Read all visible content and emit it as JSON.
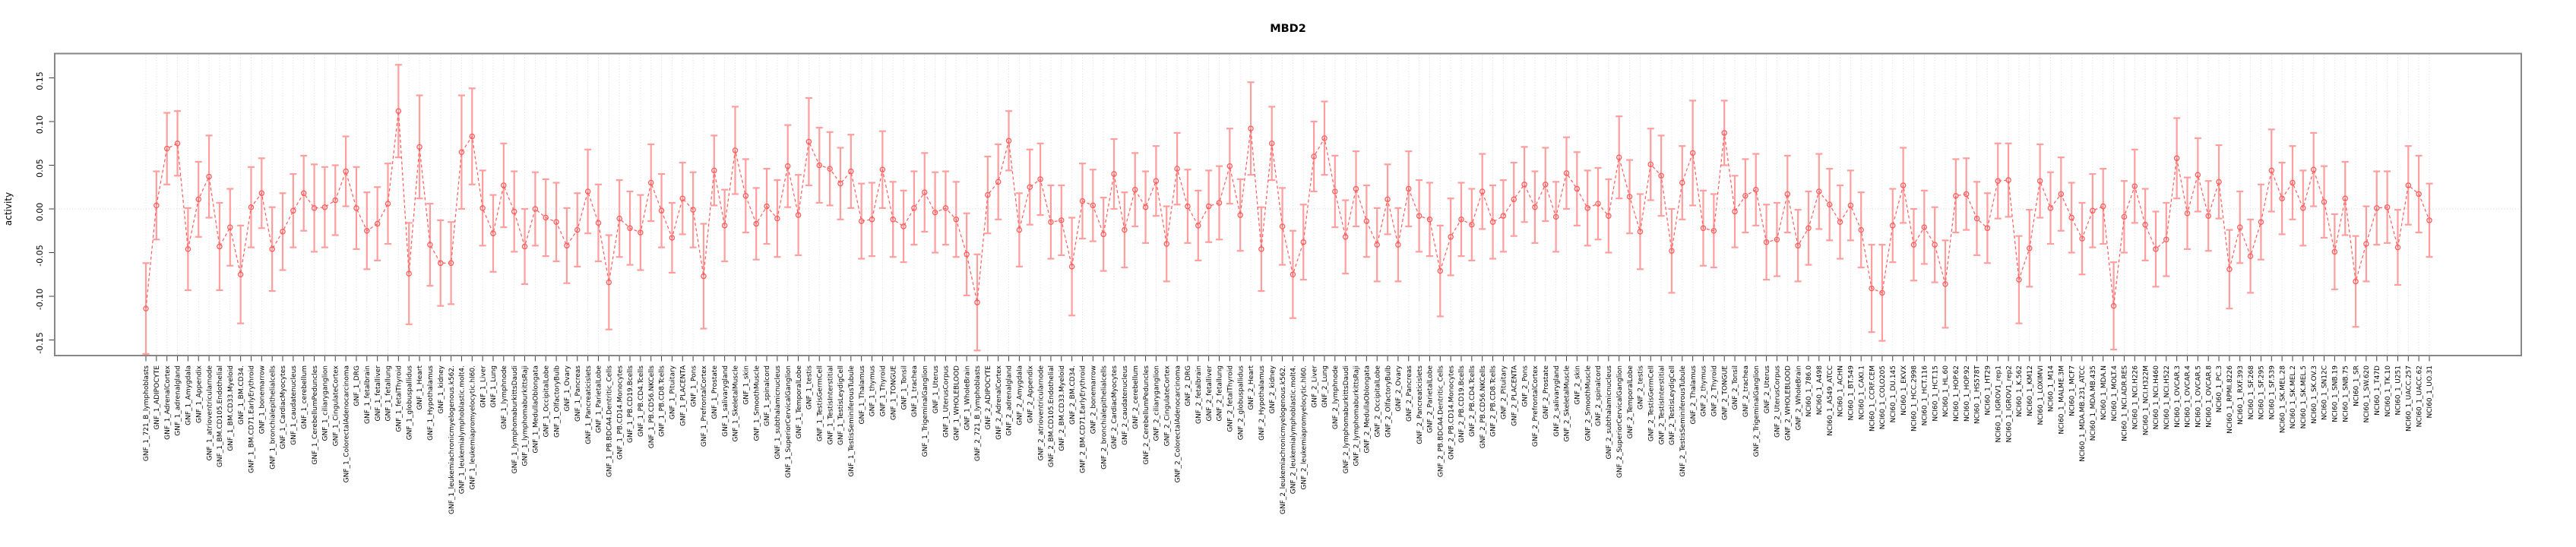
{
  "figure": {
    "title": "MBD2",
    "ylabel": "activity"
  },
  "chart_data": {
    "type": "scatter",
    "title": "MBD2",
    "xlabel": "",
    "ylabel": "activity",
    "ylim": [
      -0.175,
      0.175
    ],
    "yticks": [
      0.15,
      0.1,
      0.05,
      0.0,
      -0.05,
      -0.1,
      -0.15
    ],
    "grid": "vertical dotted line per category, dotted horizontal zero line",
    "legend_position": "none",
    "point_style": "open-circle",
    "line_style": "dashed",
    "error_bars": true,
    "colors": {
      "point": "#ff5c5c",
      "line": "#ff6060",
      "error_bar": "#ff9e9e",
      "grid": "#dcdcdc",
      "zero_line": "#dadce0",
      "box": "#868686",
      "tick": "#404040",
      "text": "#000000",
      "background": "#ffffff"
    },
    "categories": [
      "GNF_1_721_B_lymphoblasts",
      "GNF_1_ADIPOCYTE",
      "GNF_1_AdrenalCortex",
      "GNF_1_adrenalgland",
      "GNF_1_Amygdala",
      "GNF_1_Appendix",
      "GNF_1_atrioventricularnode",
      "GNF_1_BM.CD105.Endothelial",
      "GNF_1_BM.CD33.Myeloid",
      "GNF_1_BM.CD34.",
      "GNF_1_BM.CD71.EarlyErythroid",
      "GNF_1_bonemarrow",
      "GNF_1_bronchialepithelialcells",
      "GNF_1_CardiacMyocytes",
      "GNF_1_caudatenucleus",
      "GNF_1_cerebellum",
      "GNF_1_CerebellumPeduncles",
      "GNF_1_ciliaryganglion",
      "GNF_1_CingulateCortex",
      "GNF_1_ColorectalAdenocarcinoma",
      "GNF_1_DRG",
      "GNF_1_fetalbrain",
      "GNF_1_fetalliver",
      "GNF_1_fetallung",
      "GNF_1_fetalThyroid",
      "GNF_1_globuspallidus",
      "GNF_1_Heart",
      "GNF_1_Hypothalamus",
      "GNF_1_kidney",
      "GNF_1_leukemiachronicmyelogenous.k562.",
      "GNF_1_leukemialymphoblastic.molt4.",
      "GNF_1_leukemiapromyelocytic.hl60.",
      "GNF_1_Liver",
      "GNF_1_Lung",
      "GNF_1_lymphnode",
      "GNF_1_lymphomaburkittsDaudi",
      "GNF_1_lymphomaburkittsRaji",
      "GNF_1_MedullaOblongata",
      "GNF_1_OccipitalLobe",
      "GNF_1_OlfactoryBulb",
      "GNF_1_Ovary",
      "GNF_1_Pancreas",
      "GNF_1_Pancreaticislets",
      "GNF_1_ParietalLobe",
      "GNF_1_PB.BDCA4.Dentritic_Cells",
      "GNF_1_PB.CD14.Monocytes",
      "GNF_1_PB.CD19.Bcells",
      "GNF_1_PB.CD4.Tcells",
      "GNF_1_PB.CD56.NKCells",
      "GNF_1_PB.CD8.Tcells",
      "GNF_1_Pituitary",
      "GNF_1_PLACENTA",
      "GNF_1_Pons",
      "GNF_1_PrefrontalCortex",
      "GNF_1_Prostate",
      "GNF_1_salivarygland",
      "GNF_1_SkeletalMuscle",
      "GNF_1_skin",
      "GNF_1_SmoothMuscle",
      "GNF_1_spinalcord",
      "GNF_1_subthalamicnucleus",
      "GNF_1_SuperiorCervicalGanglion",
      "GNF_1_TemporalLobe",
      "GNF_1_testis",
      "GNF_1_TestisGermCell",
      "GNF_1_TestisInterstitial",
      "GNF_1_TestisLeydigCell",
      "GNF_1_TestisSeminiferousTubule",
      "GNF_1_Thalamus",
      "GNF_1_thymus",
      "GNF_1_Thyroid",
      "GNF_1_TONGUE",
      "GNF_1_Tonsil",
      "GNF_1_trachea",
      "GNF_1_TrigeminalGanglion",
      "GNF_1_Uterus",
      "GNF_1_UterusCorpus",
      "GNF_1_WHOLEBLOOD",
      "GNF_1_WholeBrain",
      "GNF_2_721_B_lymphoblasts",
      "GNF_2_ADIPOCYTE",
      "GNF_2_AdrenalCortex",
      "GNF_2_adrenalgland",
      "GNF_2_Amygdala",
      "GNF_2_Appendix",
      "GNF_2_atrioventricularnode",
      "GNF_2_BM.CD105.Endothelial",
      "GNF_2_BM.CD33.Myeloid",
      "GNF_2_BM.CD34.",
      "GNF_2_BM.CD71.EarlyErythroid",
      "GNF_2_bonemarrow",
      "GNF_2_bronchialepithelialcells",
      "GNF_2_CardiacMyocytes",
      "GNF_2_caudatenucleus",
      "GNF_2_cerebellum",
      "GNF_2_CerebellumPeduncles",
      "GNF_2_ciliaryganglion",
      "GNF_2_CingulateCortex",
      "GNF_2_ColorectalAdenocarcinoma",
      "GNF_2_DRG",
      "GNF_2_fetalbrain",
      "GNF_2_fetalliver",
      "GNF_2_fetallung",
      "GNF_2_fetalThyroid",
      "GNF_2_globuspallidus",
      "GNF_2_Heart",
      "GNF_2_Hypothalamus",
      "GNF_2_kidney",
      "GNF_2_leukemiachronicmyelogenous.k562.",
      "GNF_2_leukemialymphoblastic.molt4.",
      "GNF_2_leukemiapromyelocytic.hl60.",
      "GNF_2_Liver",
      "GNF_2_Lung",
      "GNF_2_lymphnode",
      "GNF_2_lymphomaburkittsDaudi",
      "GNF_2_lymphomaburkittsRaji",
      "GNF_2_MedullaOblongata",
      "GNF_2_OccipitalLobe",
      "GNF_2_OlfactoryBulb",
      "GNF_2_Ovary",
      "GNF_2_Pancreas",
      "GNF_2_Pancreaticislets",
      "GNF_2_ParietalLobe",
      "GNF_2_PB.BDCA4.Dentritic_Cells",
      "GNF_2_PB.CD14.Monocytes",
      "GNF_2_PB.CD19.Bcells",
      "GNF_2_PB.CD4.Tcells",
      "GNF_2_PB.CD56.NKCells",
      "GNF_2_PB.CD8.Tcells",
      "GNF_2_Pituitary",
      "GNF_2_PLACENTA",
      "GNF_2_Pons",
      "GNF_2_PrefrontalCortex",
      "GNF_2_Prostate",
      "GNF_2_salivarygland",
      "GNF_2_SkeletalMuscle",
      "GNF_2_skin",
      "GNF_2_SmoothMuscle",
      "GNF_2_spinalcord",
      "GNF_2_subthalamicnucleus",
      "GNF_2_SuperiorCervicalGanglion",
      "GNF_2_TemporalLobe",
      "GNF_2_testis",
      "GNF_2_TestisGermCell",
      "GNF_2_TestisInterstitial",
      "GNF_2_TestisLeydigCell",
      "GNF_2_TestisSeminiferousTubule",
      "GNF_2_Thalamus",
      "GNF_2_thymus",
      "GNF_2_Thyroid",
      "GNF_2_TONGUE",
      "GNF_2_Tonsil",
      "GNF_2_trachea",
      "GNF_2_TrigeminalGanglion",
      "GNF_2_Uterus",
      "GNF_2_UterusCorpus",
      "GNF_2_WHOLEBLOOD",
      "GNF_2_WholeBrain",
      "NCI60_1_786.0",
      "NCI60_1_A498",
      "NCI60_1_A549_ATCC",
      "NCI60_1_ACHN",
      "NCI60_1_BT.549",
      "NCI60_1_CAKI.1",
      "NCI60_1_CCRF.CEM",
      "NCI60_1_COLO205",
      "NCI60_1_DU.145",
      "NCI60_1_EKVX",
      "NCI60_1_HCC.2998",
      "NCI60_1_HCT.116",
      "NCI60_1_HCT.15",
      "NCI60_1_HL.60",
      "NCI60_1_HOP.62",
      "NCI60_1_HOP.92",
      "NCI60_1_HS578T",
      "NCI60_1_HT29",
      "NCI60_1_IGROV1_rep1",
      "NCI60_1_IGROV1_rep2",
      "NCI60_1_K.562",
      "NCI60_1_KM12",
      "NCI60_1_LOXIMVI",
      "NCI60_1_M14",
      "NCI60_1_MALME.3M",
      "NCI60_1_MCF7",
      "NCI60_1_MDA.MB.231_ATCC",
      "NCI60_1_MDA.MB.435",
      "NCI60_1_MDA.N",
      "NCI60_1_MOLT.4",
      "NCI60_1_NCI.ADR.RES",
      "NCI60_1_NCI.H226",
      "NCI60_1_NCI.H322M",
      "NCI60_1_NCI.H460",
      "NCI60_1_NCI.H522",
      "NCI60_1_OVCAR.3",
      "NCI60_1_OVCAR.4",
      "NCI60_1_OVCAR.5",
      "NCI60_1_OVCAR.8",
      "NCI60_1_PC.3",
      "NCI60_1_RPMI.8226",
      "NCI60_1_RXF.393",
      "NCI60_1_SF.268",
      "NCI60_1_SF.295",
      "NCI60_1_SF.539",
      "NCI60_1_SK.MEL.28",
      "NCI60_1_SK.MEL.2",
      "NCI60_1_SK.MEL.5",
      "NCI60_1_SK.OV.3",
      "NCI60_1_SN12C",
      "NCI60_1_SNB.19",
      "NCI60_1_SNB.75",
      "NCI60_1_SR",
      "NCI60_1_SW.620",
      "NCI60_1_T47D",
      "NCI60_1_TK.10",
      "NCI60_1_U251",
      "NCI60_1_UACC.257",
      "NCI60_1_UACC.62",
      "NCI60_1_UO.31"
    ],
    "values": [
      -0.114,
      0.004,
      0.069,
      0.075,
      -0.046,
      0.011,
      0.037,
      -0.043,
      -0.021,
      -0.075,
      0.002,
      0.018,
      -0.046,
      -0.026,
      -0.002,
      0.018,
      0.001,
      0.002,
      0.01,
      0.043,
      0.001,
      -0.025,
      -0.017,
      0.006,
      0.112,
      -0.074,
      0.071,
      -0.041,
      -0.062,
      -0.062,
      0.065,
      0.083,
      0.001,
      -0.028,
      0.027,
      -0.003,
      -0.043,
      0.0,
      -0.01,
      -0.015,
      -0.042,
      -0.024,
      0.02,
      -0.016,
      -0.084,
      -0.011,
      -0.022,
      -0.027,
      0.03,
      -0.002,
      -0.033,
      0.012,
      -0.001,
      -0.077,
      0.044,
      -0.019,
      0.067,
      0.015,
      -0.017,
      0.003,
      -0.011,
      0.049,
      -0.007,
      0.077,
      0.05,
      0.046,
      0.029,
      0.043,
      -0.014,
      -0.012,
      0.045,
      -0.012,
      -0.02,
      0.001,
      0.019,
      -0.004,
      0.001,
      -0.012,
      -0.052,
      -0.107,
      0.016,
      0.031,
      0.078,
      -0.024,
      0.025,
      0.034,
      -0.015,
      -0.013,
      -0.066,
      0.009,
      0.004,
      -0.029,
      0.04,
      -0.024,
      0.022,
      0.002,
      0.032,
      -0.04,
      0.046,
      0.003,
      -0.019,
      0.003,
      0.007,
      0.049,
      -0.007,
      0.092,
      -0.046,
      0.075,
      -0.02,
      -0.075,
      -0.038,
      0.06,
      0.081,
      0.02,
      -0.032,
      0.023,
      -0.014,
      -0.041,
      0.011,
      -0.041,
      0.023,
      -0.008,
      -0.012,
      -0.071,
      -0.032,
      -0.012,
      -0.018,
      0.02,
      -0.015,
      -0.008,
      0.011,
      0.028,
      0.002,
      0.028,
      -0.009,
      0.041,
      0.023,
      0.001,
      0.006,
      -0.008,
      0.059,
      0.014,
      -0.026,
      0.051,
      0.038,
      -0.048,
      0.03,
      0.064,
      -0.022,
      -0.025,
      0.087,
      -0.003,
      0.015,
      0.022,
      -0.038,
      -0.035,
      0.017,
      -0.042,
      -0.022,
      0.02,
      0.005,
      -0.015,
      0.004,
      -0.024,
      -0.091,
      -0.096,
      -0.019,
      0.027,
      -0.041,
      -0.021,
      -0.041,
      -0.086,
      0.015,
      0.017,
      -0.011,
      -0.022,
      0.032,
      0.033,
      -0.081,
      -0.045,
      0.032,
      0.001,
      0.017,
      -0.01,
      -0.034,
      -0.002,
      0.003,
      -0.111,
      -0.009,
      0.026,
      -0.018,
      -0.046,
      -0.035,
      0.058,
      -0.005,
      0.039,
      -0.008,
      0.031,
      -0.069,
      -0.021,
      -0.054,
      -0.015,
      0.044,
      0.012,
      0.03,
      0.001,
      0.045,
      0.008,
      -0.049,
      0.012,
      -0.083,
      -0.04,
      0.001,
      0.002,
      -0.044,
      0.027,
      0.017,
      -0.013
    ],
    "errors": [
      0.052,
      0.039,
      0.041,
      0.037,
      0.047,
      0.043,
      0.047,
      0.05,
      0.044,
      0.056,
      0.046,
      0.04,
      0.048,
      0.044,
      0.042,
      0.043,
      0.05,
      0.046,
      0.04,
      0.04,
      0.047,
      0.044,
      0.042,
      0.046,
      0.053,
      0.058,
      0.059,
      0.047,
      0.049,
      0.047,
      0.065,
      0.055,
      0.043,
      0.044,
      0.048,
      0.046,
      0.043,
      0.042,
      0.044,
      0.045,
      0.043,
      0.042,
      0.048,
      0.044,
      0.054,
      0.044,
      0.042,
      0.043,
      0.044,
      0.042,
      0.04,
      0.041,
      0.043,
      0.06,
      0.04,
      0.041,
      0.05,
      0.042,
      0.041,
      0.043,
      0.044,
      0.047,
      0.046,
      0.05,
      0.043,
      0.042,
      0.041,
      0.042,
      0.043,
      0.042,
      0.044,
      0.043,
      0.041,
      0.042,
      0.045,
      0.046,
      0.042,
      0.043,
      0.047,
      0.055,
      0.044,
      0.043,
      0.034,
      0.042,
      0.043,
      0.041,
      0.042,
      0.04,
      0.056,
      0.043,
      0.041,
      0.042,
      0.04,
      0.043,
      0.042,
      0.041,
      0.04,
      0.043,
      0.041,
      0.042,
      0.04,
      0.041,
      0.042,
      0.043,
      0.041,
      0.053,
      0.048,
      0.042,
      0.044,
      0.05,
      0.043,
      0.04,
      0.042,
      0.041,
      0.042,
      0.043,
      0.041,
      0.042,
      0.04,
      0.042,
      0.043,
      0.041,
      0.042,
      0.052,
      0.044,
      0.042,
      0.041,
      0.043,
      0.042,
      0.041,
      0.042,
      0.043,
      0.041,
      0.042,
      0.04,
      0.041,
      0.042,
      0.043,
      0.041,
      0.042,
      0.047,
      0.042,
      0.043,
      0.041,
      0.046,
      0.048,
      0.042,
      0.06,
      0.043,
      0.042,
      0.037,
      0.041,
      0.042,
      0.041,
      0.043,
      0.042,
      0.044,
      0.041,
      0.042,
      0.043,
      0.041,
      0.042,
      0.04,
      0.043,
      0.05,
      0.055,
      0.042,
      0.043,
      0.041,
      0.042,
      0.043,
      0.05,
      0.042,
      0.041,
      0.042,
      0.04,
      0.043,
      0.042,
      0.05,
      0.044,
      0.042,
      0.041,
      0.042,
      0.04,
      0.041,
      0.042,
      0.043,
      0.05,
      0.041,
      0.042,
      0.041,
      0.043,
      0.042,
      0.046,
      0.041,
      0.042,
      0.04,
      0.042,
      0.045,
      0.041,
      0.042,
      0.043,
      0.047,
      0.041,
      0.042,
      0.043,
      0.042,
      0.041,
      0.043,
      0.042,
      0.052,
      0.043,
      0.042,
      0.041,
      0.043,
      0.045,
      0.044,
      0.042
    ]
  }
}
